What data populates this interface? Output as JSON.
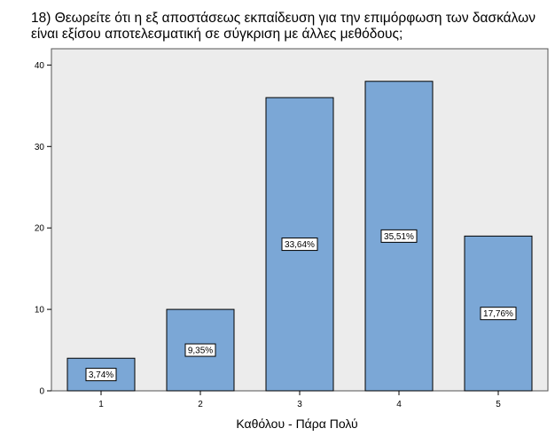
{
  "chart_data": {
    "type": "bar",
    "title": "18) Θεωρείτε ότι η εξ αποστάσεως εκπαίδευση για την επιμόρφωση των δασκάλων είναι εξίσου αποτελεσματική σε σύγκριση με άλλες μεθόδους;",
    "xlabel": "Καθόλου - Πάρα Πολύ",
    "ylabel": "",
    "categories": [
      "1",
      "2",
      "3",
      "4",
      "5"
    ],
    "values": [
      4,
      10,
      36,
      38,
      19
    ],
    "data_labels": [
      "3,74%",
      "9,35%",
      "33,64%",
      "35,51%",
      "17,76%"
    ],
    "ylim": [
      0,
      42
    ],
    "yticks": [
      0,
      10,
      20,
      30,
      40
    ],
    "grid": false,
    "bar_color": "#7ba7d6",
    "plot_background": "#ececec"
  }
}
